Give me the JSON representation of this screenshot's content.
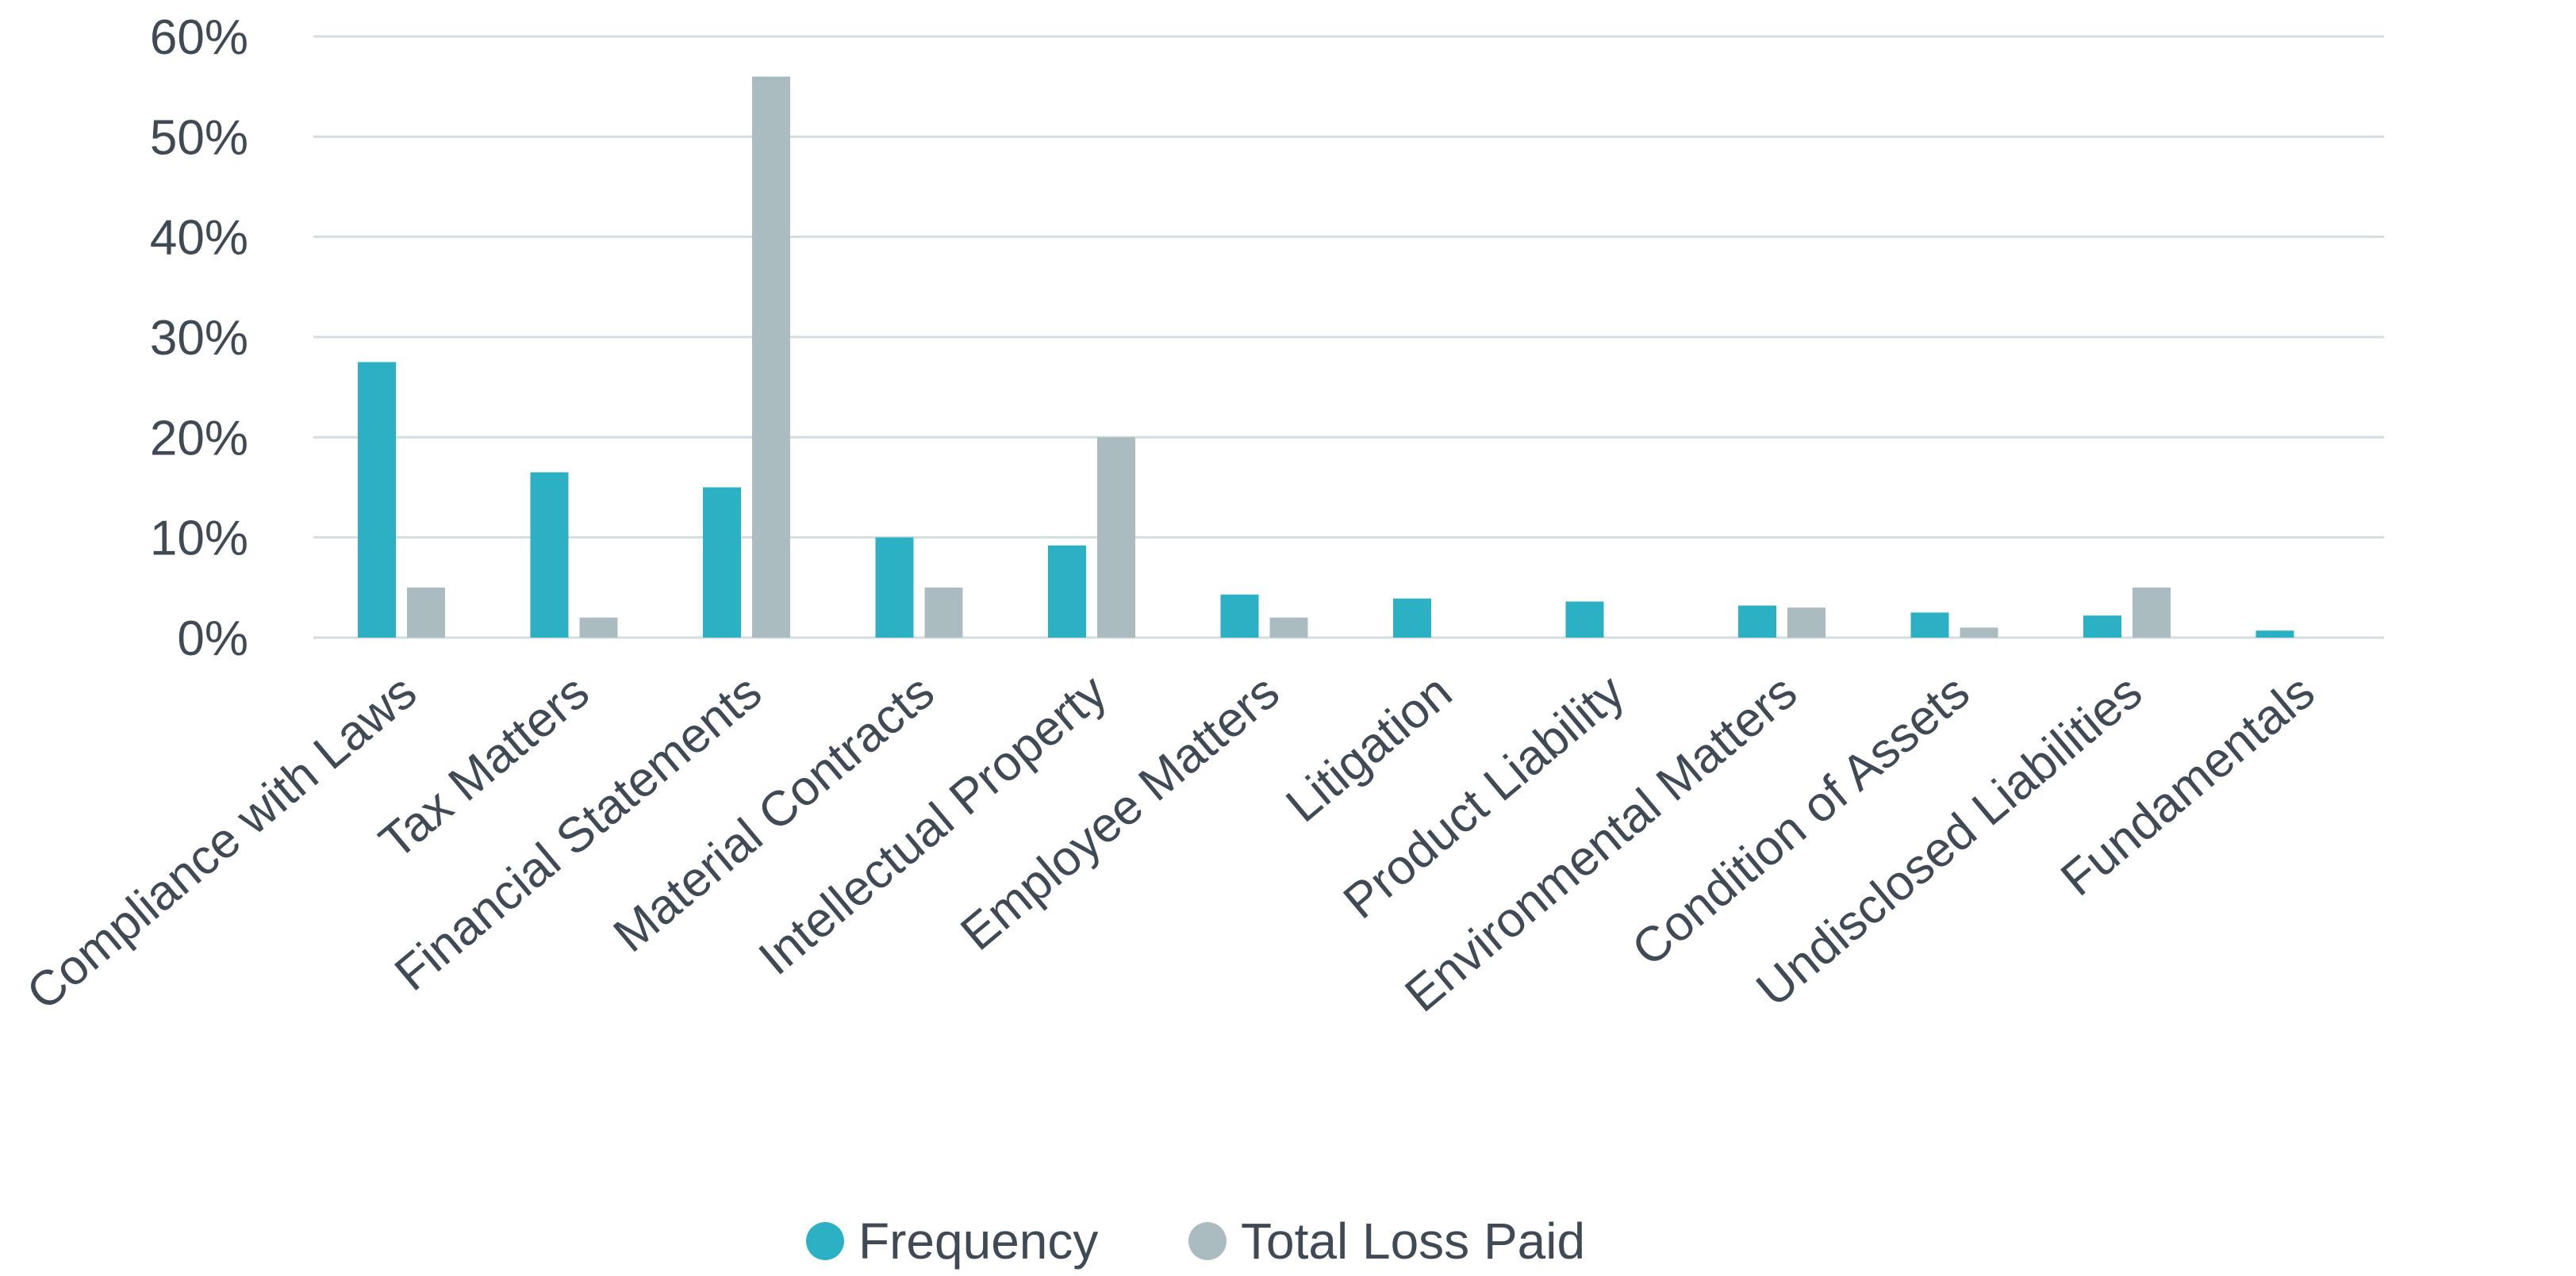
{
  "chart_data": {
    "type": "bar",
    "categories": [
      "Compliance with Laws",
      "Tax Matters",
      "Financial Statements",
      "Material Contracts",
      "Intellectual Property",
      "Employee Matters",
      "Litigation",
      "Product Liability",
      "Environmental Matters",
      "Condition of Assets",
      "Undisclosed Liabilities",
      "Fundamentals"
    ],
    "series": [
      {
        "name": "Frequency",
        "color": "#2bb0c4",
        "values": [
          27.5,
          16.5,
          15,
          10,
          9.2,
          4.3,
          3.9,
          3.6,
          3.2,
          2.5,
          2.2,
          0.7
        ]
      },
      {
        "name": "Total Loss Paid",
        "color": "#abbcc0",
        "values": [
          5,
          2,
          56,
          5,
          20,
          2,
          0,
          0,
          3,
          1,
          5,
          0
        ]
      }
    ],
    "ylim": [
      0,
      60
    ],
    "yticks": [
      0,
      10,
      20,
      30,
      40,
      50,
      60
    ],
    "ytick_labels": [
      "0%",
      "10%",
      "20%",
      "30%",
      "40%",
      "50%",
      "60%"
    ],
    "grid": true,
    "legend": "bottom-center",
    "title": "",
    "xlabel": "",
    "ylabel": ""
  }
}
